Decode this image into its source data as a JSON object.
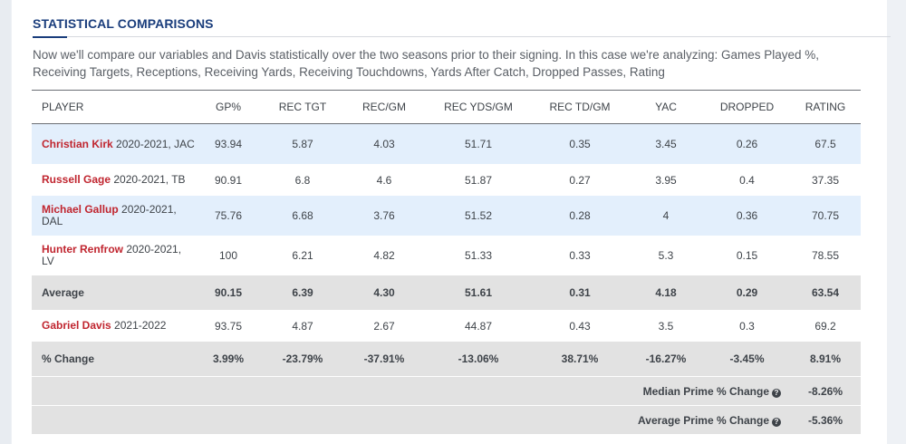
{
  "section": {
    "title": "STATISTICAL COMPARISONS",
    "intro": "Now we'll compare our variables and Davis statistically over the two seasons prior to their signing. In this case we're analyzing: Games Played %, Receiving Targets, Receptions, Receiving Yards, Receiving Touchdowns, Yards After Catch, Dropped Passes, Rating"
  },
  "table": {
    "headers": [
      "PLAYER",
      "GP%",
      "REC TGT",
      "REC/GM",
      "REC YDS/GM",
      "REC TD/GM",
      "YAC",
      "DROPPED",
      "RATING"
    ],
    "rows": [
      {
        "name": "Christian Kirk",
        "season": " 2020-2021, JAC",
        "values": [
          "93.94",
          "5.87",
          "4.03",
          "51.71",
          "0.35",
          "3.45",
          "0.26",
          "67.5"
        ]
      },
      {
        "name": "Russell Gage",
        "season": " 2020-2021, TB",
        "values": [
          "90.91",
          "6.8",
          "4.6",
          "51.87",
          "0.27",
          "3.95",
          "0.4",
          "37.35"
        ]
      },
      {
        "name": "Michael Gallup",
        "season": " 2020-2021, DAL",
        "values": [
          "75.76",
          "6.68",
          "3.76",
          "51.52",
          "0.28",
          "4",
          "0.36",
          "70.75"
        ]
      },
      {
        "name": "Hunter Renfrow",
        "season": " 2020-2021, LV",
        "values": [
          "100",
          "6.21",
          "4.82",
          "51.33",
          "0.33",
          "5.3",
          "0.15",
          "78.55"
        ]
      }
    ],
    "average": {
      "label": "Average",
      "values": [
        "90.15",
        "6.39",
        "4.30",
        "51.61",
        "0.31",
        "4.18",
        "0.29",
        "63.54"
      ]
    },
    "subject": {
      "name": "Gabriel Davis",
      "season": " 2021-2022",
      "values": [
        "93.75",
        "4.87",
        "2.67",
        "44.87",
        "0.43",
        "3.5",
        "0.3",
        "69.2"
      ]
    },
    "change": {
      "label": "% Change",
      "values": [
        "3.99%",
        "-23.79%",
        "-37.91%",
        "-13.06%",
        "38.71%",
        "-16.27%",
        "-3.45%",
        "8.91%"
      ]
    },
    "median_prime": {
      "label": "Median Prime % Change",
      "value": "-8.26%"
    },
    "average_prime": {
      "label": "Average Prime % Change",
      "value": "-5.36%"
    }
  },
  "icons": {
    "help": "question-circle-icon"
  },
  "colors": {
    "title": "#1a3d7c",
    "player_name": "#c0252f",
    "row_highlight": "#e3effc",
    "row_gray": "#e2e2e2"
  }
}
